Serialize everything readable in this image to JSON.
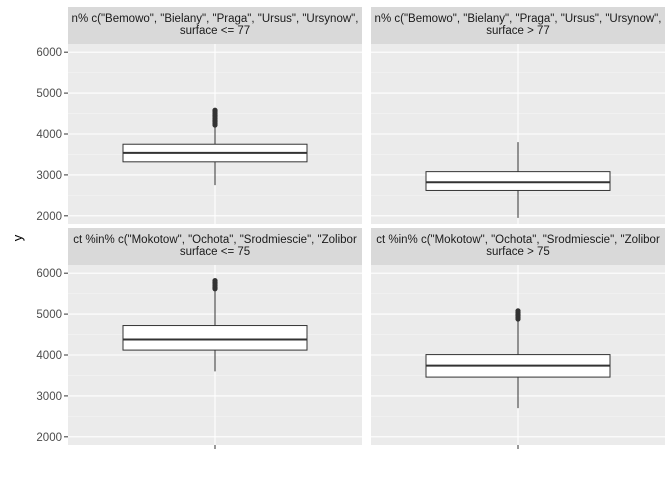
{
  "chart_data": {
    "type": "boxplot",
    "ylabel": "y",
    "y_ticks": [
      2000,
      3000,
      4000,
      5000,
      6000
    ],
    "ylim": [
      1800,
      6200
    ],
    "grid": true,
    "colors": {
      "panel_bg": "#ebebeb",
      "strip_bg": "#d9d9d9",
      "grid_major": "#ffffff",
      "grid_minor": "#f5f5f5",
      "box_fill": "#ffffff",
      "box_line": "#333333"
    },
    "panels": [
      {
        "row": 0,
        "col": 0,
        "strip": [
          "n% c(\"Bemowo\", \"Bielany\", \"Praga\", \"Ursus\", \"Ursynow\",",
          "surface <= 77"
        ],
        "box": {
          "whisker_low": 2750,
          "q1": 3320,
          "median": 3540,
          "q3": 3750,
          "whisker_high": 4200,
          "outliers": [
            4220,
            4260,
            4300,
            4340,
            4380,
            4420,
            4460,
            4500,
            4540,
            4580
          ]
        }
      },
      {
        "row": 0,
        "col": 1,
        "strip": [
          "n% c(\"Bemowo\", \"Bielany\", \"Praga\", \"Ursus\", \"Ursynow\",",
          "surface > 77"
        ],
        "box": {
          "whisker_low": 1950,
          "q1": 2620,
          "median": 2820,
          "q3": 3080,
          "whisker_high": 3800,
          "outliers": []
        }
      },
      {
        "row": 1,
        "col": 0,
        "strip": [
          "ct %in% c(\"Mokotow\", \"Ochota\", \"Srodmiescie\", \"Zolibor",
          "surface <= 75"
        ],
        "box": {
          "whisker_low": 3600,
          "q1": 4120,
          "median": 4380,
          "q3": 4720,
          "whisker_high": 5580,
          "outliers": [
            5620,
            5660,
            5700,
            5740,
            5780,
            5820
          ]
        }
      },
      {
        "row": 1,
        "col": 1,
        "strip": [
          "ct %in% c(\"Mokotow\", \"Ochota\", \"Srodmiescie\", \"Zolibor",
          "surface > 75"
        ],
        "box": {
          "whisker_low": 2700,
          "q1": 3460,
          "median": 3740,
          "q3": 4010,
          "whisker_high": 4850,
          "outliers": [
            4880,
            4920,
            4960,
            5000,
            5040,
            5080
          ]
        }
      }
    ]
  }
}
